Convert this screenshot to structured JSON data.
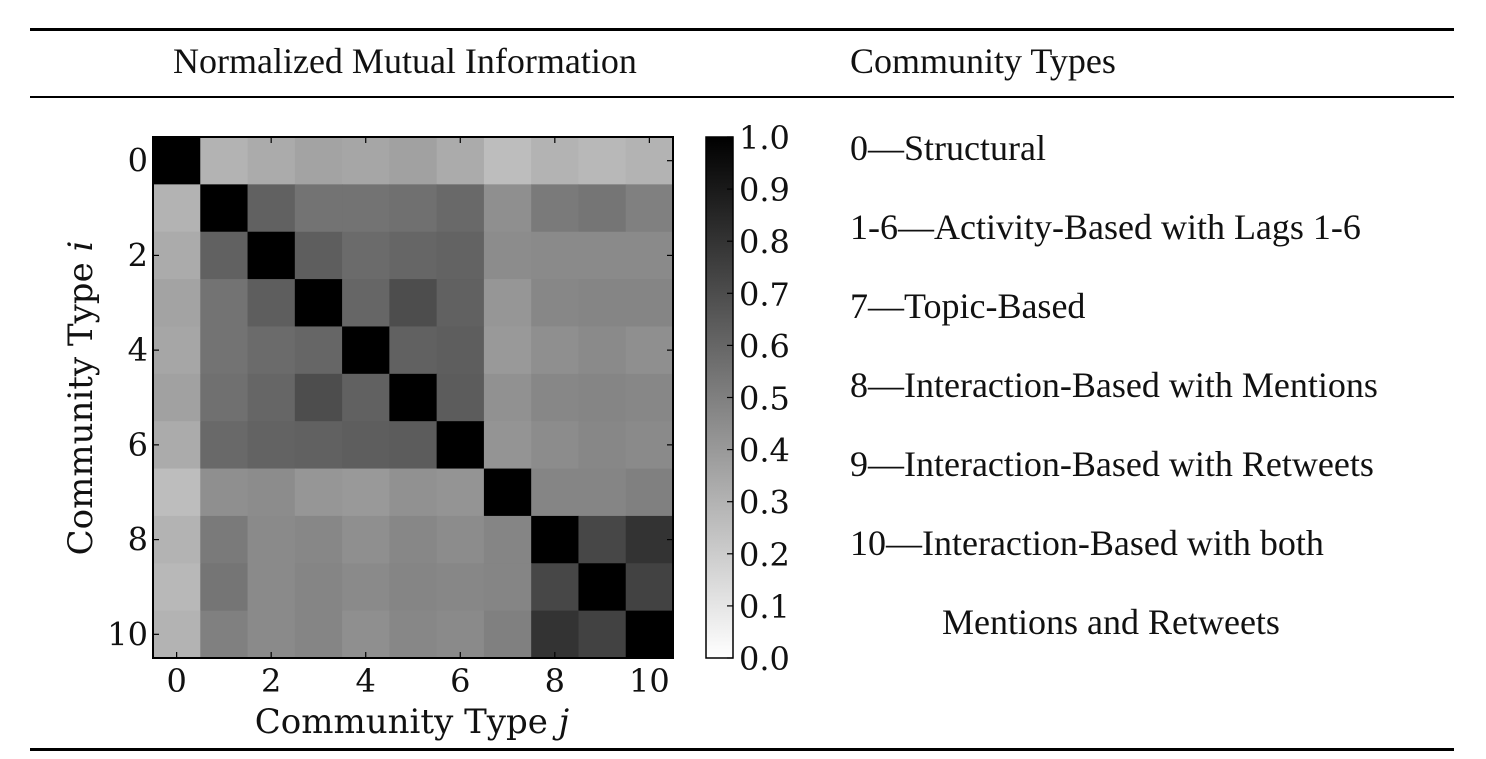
{
  "table": {
    "header_left": "Normalized Mutual Information",
    "header_right": "Community Types"
  },
  "legend_items": [
    "0—Structural",
    "1-6—Activity-Based with Lags 1-6",
    "7—Topic-Based",
    "8—Interaction-Based with Mentions",
    "9—Interaction-Based with Retweets",
    "10—Interaction-Based with both"
  ],
  "legend_continuation": "Mentions and Retweets",
  "chart_data": {
    "type": "heatmap",
    "title": "",
    "xlabel": "Community Type",
    "xlabel_var": "j",
    "ylabel": "Community Type",
    "ylabel_var": "i",
    "x_ticks": [
      "0",
      "2",
      "4",
      "6",
      "8",
      "10"
    ],
    "y_ticks": [
      "0",
      "2",
      "4",
      "6",
      "8",
      "10"
    ],
    "colorbar": {
      "range": [
        0.0,
        1.0
      ],
      "ticks": [
        "1.0",
        "0.9",
        "0.8",
        "0.7",
        "0.6",
        "0.5",
        "0.4",
        "0.3",
        "0.2",
        "0.1",
        "0.0"
      ],
      "colormap": "gray_r"
    },
    "values": [
      [
        1.0,
        0.3,
        0.33,
        0.36,
        0.35,
        0.37,
        0.33,
        0.26,
        0.3,
        0.28,
        0.3
      ],
      [
        0.3,
        1.0,
        0.62,
        0.55,
        0.55,
        0.56,
        0.59,
        0.44,
        0.52,
        0.54,
        0.5
      ],
      [
        0.33,
        0.62,
        1.0,
        0.63,
        0.58,
        0.6,
        0.61,
        0.45,
        0.46,
        0.46,
        0.46
      ],
      [
        0.36,
        0.55,
        0.63,
        1.0,
        0.6,
        0.7,
        0.62,
        0.41,
        0.47,
        0.48,
        0.48
      ],
      [
        0.35,
        0.55,
        0.58,
        0.6,
        1.0,
        0.62,
        0.63,
        0.4,
        0.44,
        0.46,
        0.44
      ],
      [
        0.37,
        0.56,
        0.6,
        0.7,
        0.62,
        1.0,
        0.64,
        0.43,
        0.47,
        0.48,
        0.47
      ],
      [
        0.33,
        0.59,
        0.61,
        0.62,
        0.63,
        0.64,
        1.0,
        0.42,
        0.45,
        0.47,
        0.46
      ],
      [
        0.26,
        0.44,
        0.45,
        0.41,
        0.4,
        0.43,
        0.42,
        1.0,
        0.48,
        0.48,
        0.5
      ],
      [
        0.3,
        0.52,
        0.46,
        0.47,
        0.44,
        0.47,
        0.45,
        0.48,
        1.0,
        0.72,
        0.8
      ],
      [
        0.28,
        0.54,
        0.46,
        0.48,
        0.46,
        0.48,
        0.47,
        0.48,
        0.72,
        1.0,
        0.74
      ],
      [
        0.3,
        0.5,
        0.46,
        0.48,
        0.44,
        0.47,
        0.46,
        0.5,
        0.8,
        0.74,
        1.0
      ]
    ],
    "grid": false
  }
}
